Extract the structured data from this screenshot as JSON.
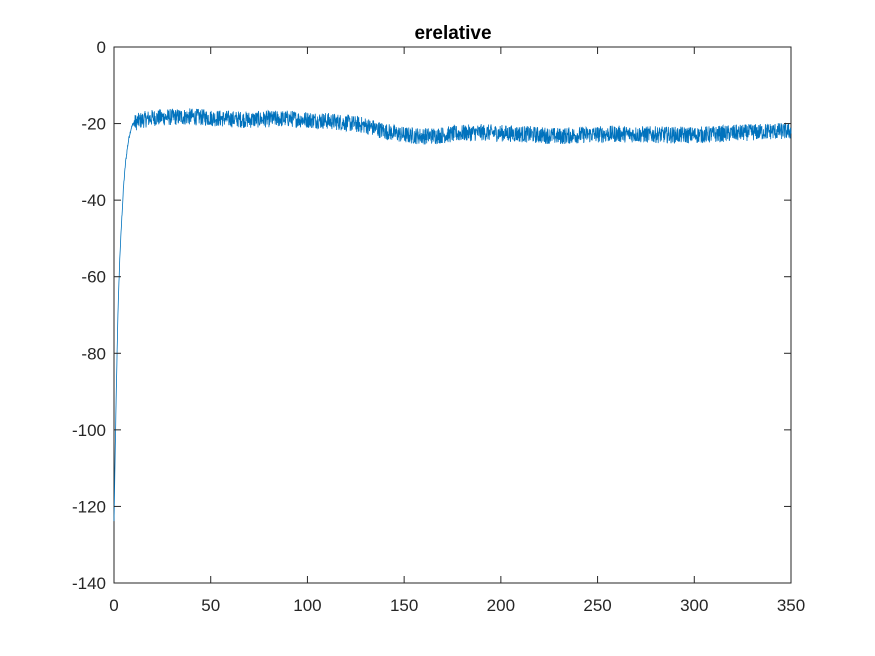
{
  "chart_data": {
    "type": "line",
    "title": "erelative",
    "xlabel": "",
    "ylabel": "",
    "xlim": [
      0,
      350
    ],
    "ylim": [
      -140,
      0
    ],
    "xticks": [
      0,
      50,
      100,
      150,
      200,
      250,
      300,
      350
    ],
    "yticks": [
      0,
      -20,
      -40,
      -60,
      -80,
      -100,
      -120,
      -140
    ],
    "grid": false,
    "line_color": "#0072BD",
    "series": [
      {
        "x": [
          0,
          1,
          2,
          3,
          4,
          5,
          6,
          7,
          8,
          9,
          10,
          12,
          15,
          20,
          30,
          40,
          50,
          60,
          70,
          80,
          90,
          100,
          110,
          120,
          130,
          140,
          150,
          160,
          170,
          180,
          190,
          200,
          210,
          220,
          230,
          240,
          250,
          260,
          270,
          280,
          290,
          300,
          310,
          320,
          330,
          340,
          350
        ],
        "values": [
          -124,
          -95,
          -70,
          -55,
          -45,
          -36,
          -30,
          -26,
          -23,
          -21,
          -20,
          -19.5,
          -19,
          -18.5,
          -18.3,
          -18.2,
          -18.5,
          -18.8,
          -19,
          -18.8,
          -18.7,
          -19,
          -19.3,
          -19.8,
          -20.5,
          -22,
          -23,
          -23.3,
          -23,
          -22.5,
          -22.3,
          -22.5,
          -22.7,
          -23,
          -23.3,
          -23,
          -22.8,
          -22.7,
          -22.8,
          -22.9,
          -23,
          -23,
          -22.8,
          -22.5,
          -22.3,
          -22,
          -22
        ]
      }
    ]
  }
}
